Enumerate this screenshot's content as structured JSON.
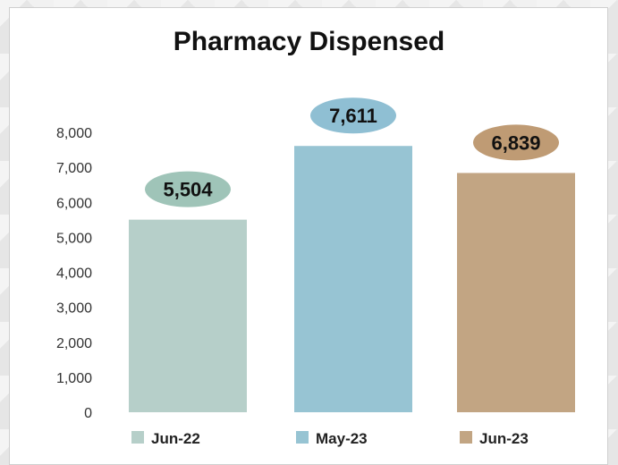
{
  "chart_data": {
    "type": "bar",
    "title": "Pharmacy Dispensed",
    "categories": [
      "Jun-22",
      "May-23",
      "Jun-23"
    ],
    "values": [
      5504,
      7611,
      6839
    ],
    "data_labels": [
      "5,504",
      "7,611",
      "6,839"
    ],
    "colors": [
      "#b6cfc9",
      "#97c4d3",
      "#c2a583"
    ],
    "label_bubble_colors": [
      "#9fc4b8",
      "#8fbfd3",
      "#bf9b74"
    ],
    "ylim": [
      0,
      8000
    ],
    "y_ticks": [
      0,
      1000,
      2000,
      3000,
      4000,
      5000,
      6000,
      7000,
      8000
    ],
    "y_tick_labels": [
      "0",
      "1,000",
      "2,000",
      "3,000",
      "4,000",
      "5,000",
      "6,000",
      "7,000",
      "8,000"
    ],
    "xlabel": "",
    "ylabel": "",
    "grid": false,
    "legend_position": "bottom",
    "legend": [
      "Jun-22",
      "May-23",
      "Jun-23"
    ]
  }
}
